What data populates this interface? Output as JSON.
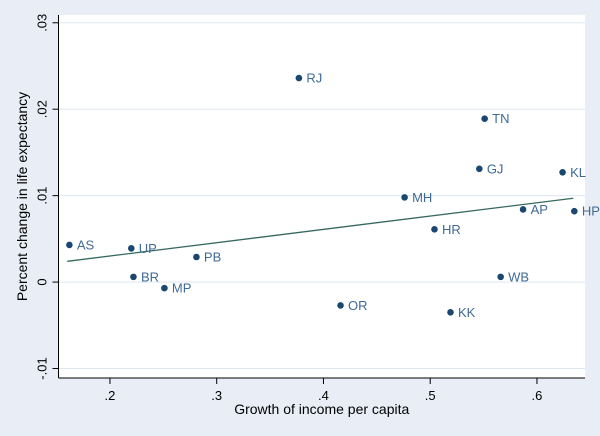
{
  "chart_data": {
    "type": "scatter",
    "xlabel": "Growth of income per capita",
    "ylabel": "Percent change in life expectancy",
    "xlim": [
      0.1518,
      0.645
    ],
    "ylim": [
      -0.0111,
      0.0309
    ],
    "grid": "horizontal-only",
    "legend": "none",
    "x_ticks": [
      {
        "label": ".2",
        "value": 0.2
      },
      {
        "label": ".3",
        "value": 0.3
      },
      {
        "label": ".4",
        "value": 0.4
      },
      {
        "label": ".5",
        "value": 0.5
      },
      {
        "label": ".6",
        "value": 0.6
      }
    ],
    "y_ticks": [
      {
        "label": "-.01",
        "value": -0.01
      },
      {
        "label": "0",
        "value": 0
      },
      {
        "label": ".01",
        "value": 0.01
      },
      {
        "label": ".02",
        "value": 0.02
      },
      {
        "label": ".03",
        "value": 0.03
      }
    ],
    "points": [
      {
        "label": "AS",
        "x": 0.162,
        "y": 0.0043
      },
      {
        "label": "UP",
        "x": 0.22,
        "y": 0.0039
      },
      {
        "label": "BR",
        "x": 0.222,
        "y": 0.0006
      },
      {
        "label": "MP",
        "x": 0.251,
        "y": -0.0007
      },
      {
        "label": "PB",
        "x": 0.281,
        "y": 0.0029
      },
      {
        "label": "RJ",
        "x": 0.377,
        "y": 0.0236
      },
      {
        "label": "OR",
        "x": 0.416,
        "y": -0.0027
      },
      {
        "label": "MH",
        "x": 0.476,
        "y": 0.0098
      },
      {
        "label": "HR",
        "x": 0.504,
        "y": 0.0061
      },
      {
        "label": "KK",
        "x": 0.519,
        "y": -0.0035
      },
      {
        "label": "TN",
        "x": 0.551,
        "y": 0.0189
      },
      {
        "label": "GJ",
        "x": 0.546,
        "y": 0.0131
      },
      {
        "label": "WB",
        "x": 0.566,
        "y": 0.0006
      },
      {
        "label": "AP",
        "x": 0.587,
        "y": 0.0084
      },
      {
        "label": "KL",
        "x": 0.624,
        "y": 0.0127
      },
      {
        "label": "HP",
        "x": 0.635,
        "y": 0.0082
      }
    ],
    "fit_line": {
      "x1": 0.16,
      "y1": 0.0024,
      "x2": 0.634,
      "y2": 0.0097
    },
    "colors": {
      "outer_bg": "#e9edf6",
      "plot_bg": "#ffffff",
      "grid": "#dde7f2",
      "axis": "#000000",
      "marker": "#1a476f",
      "marker_label": "#3f6a94",
      "fit_line": "#35695e"
    }
  }
}
